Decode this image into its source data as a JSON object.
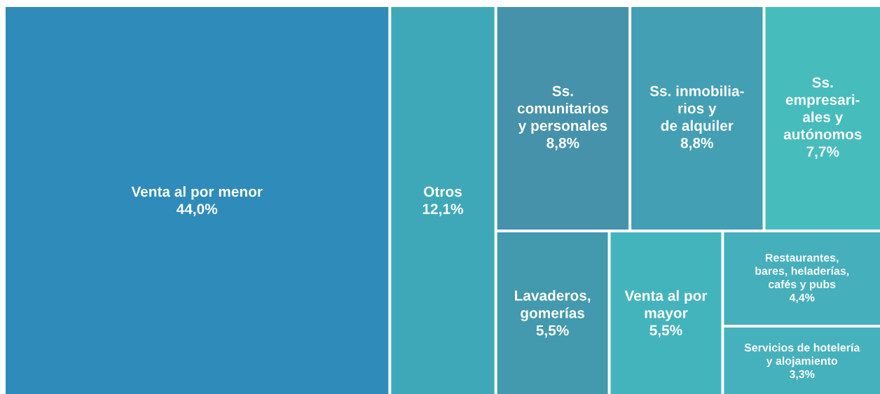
{
  "chart_data": {
    "type": "other",
    "categories": [
      "Venta al por menor",
      "Otros",
      "Ss.\ncomunitarios\ny personales",
      "Ss. inmobilia-\nrios y\nde alquiler",
      "Ss.\nempresari-\nales y\nautónomos",
      "Lavaderos,\ngomerías",
      "Venta al por\nmayor",
      "Restaurantes,\nbares, heladerías,\ncafés y pubs",
      "Servicios de hotelería\ny alojamiento"
    ],
    "values": [
      44.0,
      12.1,
      8.8,
      8.8,
      7.7,
      5.5,
      5.5,
      4.4,
      3.3
    ],
    "value_labels": [
      "44,0%",
      "12,1%",
      "8,8%",
      "8,8%",
      "7,7%",
      "5,5%",
      "5,5%",
      "4,4%",
      "3,3%"
    ],
    "colors": [
      "#2e8bba",
      "#3fa8b8",
      "#4592aa",
      "#439fb3",
      "#46bcbc",
      "#4399ad",
      "#44b4bc",
      "#45afbb",
      "#45b1bd"
    ]
  }
}
